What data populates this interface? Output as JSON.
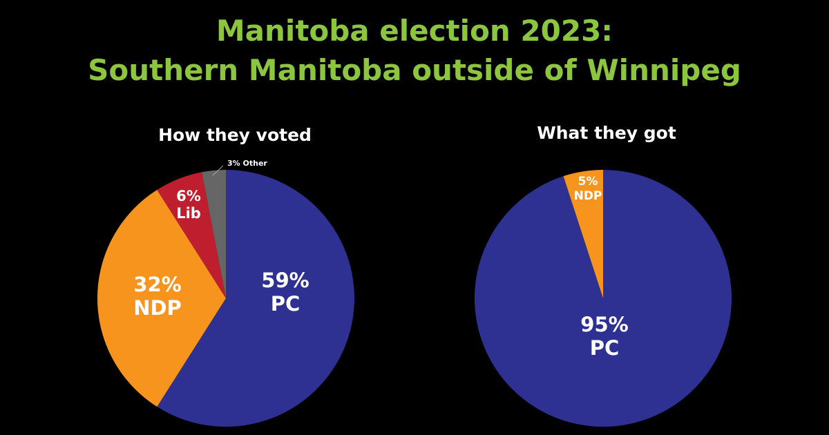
{
  "page": {
    "title_line1": "Manitoba election 2023:",
    "title_line2": "Southern Manitoba outside of Winnipeg",
    "title_color": "#8cc63f",
    "background": "#000000"
  },
  "chart_data": [
    {
      "type": "pie",
      "title": "How they voted",
      "slices": [
        {
          "name": "PC",
          "value": 59,
          "label": [
            "59%",
            "PC"
          ],
          "color": "#2e3192"
        },
        {
          "name": "NDP",
          "value": 32,
          "label": [
            "32%",
            "NDP"
          ],
          "color": "#f7941d"
        },
        {
          "name": "Lib",
          "value": 6,
          "label": [
            "6%",
            "Lib"
          ],
          "color": "#be1e2d"
        },
        {
          "name": "Other",
          "value": 3,
          "label": [
            "3% Other"
          ],
          "color": "#666666"
        }
      ]
    },
    {
      "type": "pie",
      "title": "What they got",
      "slices": [
        {
          "name": "PC",
          "value": 95,
          "label": [
            "95%",
            "PC"
          ],
          "color": "#2e3192"
        },
        {
          "name": "NDP",
          "value": 5,
          "label": [
            "5%",
            "NDP"
          ],
          "color": "#f7941d"
        }
      ]
    }
  ]
}
